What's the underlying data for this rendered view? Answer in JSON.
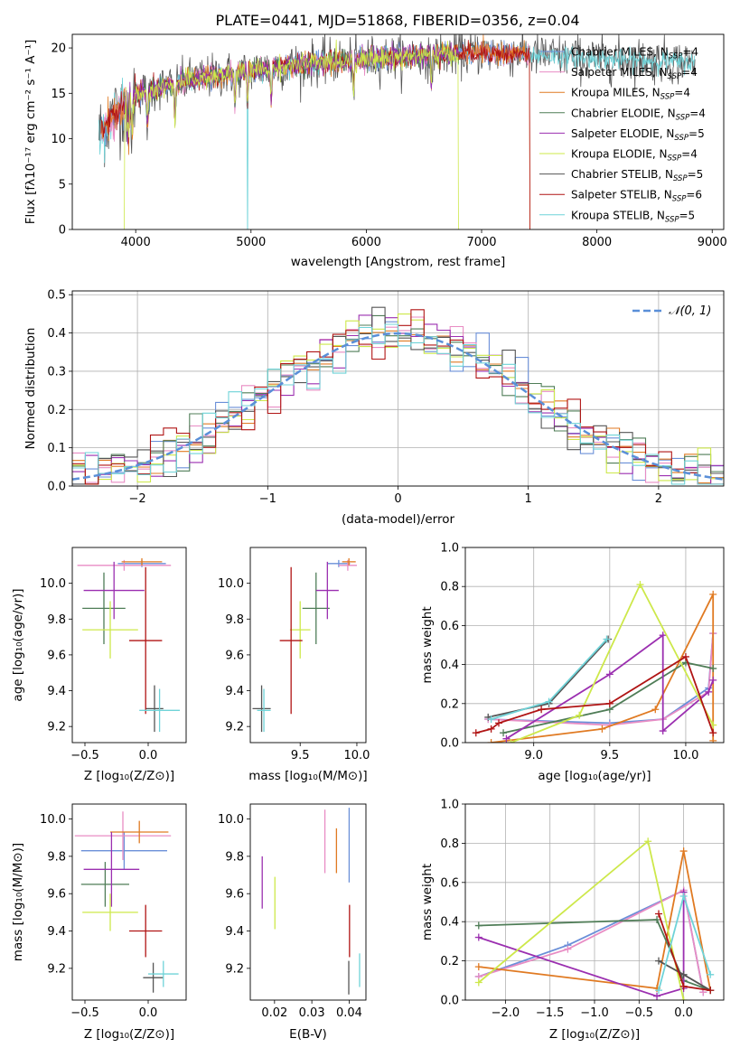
{
  "figure_title": "PLATE=0441, MJD=51868, FIBERID=0356, z=0.04",
  "colors": {
    "chabrier_miles": "#6a8fd8",
    "salpeter_miles": "#e88cc4",
    "kroupa_miles": "#e07a22",
    "chabrier_elodie": "#4f7d57",
    "salpeter_elodie": "#9b2fb0",
    "kroupa_elodie": "#cde84a",
    "chabrier_stelib": "#555555",
    "salpeter_stelib": "#b01414",
    "kroupa_stelib": "#6fd3d8"
  },
  "chart_data": [
    {
      "type": "line",
      "panel": "spectrum",
      "xlabel": "wavelength [Angstrom, rest frame]",
      "ylabel": "Flux [fλ10⁻¹⁷ erg cm⁻² s⁻¹ A⁻¹]",
      "xlim": [
        3450,
        9100
      ],
      "ylim": [
        0,
        21.5
      ],
      "xticks": [
        4000,
        5000,
        6000,
        7000,
        8000,
        9000
      ],
      "yticks": [
        0,
        5,
        10,
        15,
        20
      ],
      "legend_position": "top-right",
      "legend": [
        {
          "key": "chabrier_miles",
          "label": "Chabrier MILES, N",
          "sub": "SSP",
          "tail": "=4"
        },
        {
          "key": "salpeter_miles",
          "label": "Salpeter MILES, N",
          "sub": "SSP",
          "tail": "=4"
        },
        {
          "key": "kroupa_miles",
          "label": "Kroupa MILES, N",
          "sub": "SSP",
          "tail": "=4"
        },
        {
          "key": "chabrier_elodie",
          "label": "Chabrier ELODIE, N",
          "sub": "SSP",
          "tail": "=4"
        },
        {
          "key": "salpeter_elodie",
          "label": "Salpeter ELODIE, N",
          "sub": "SSP",
          "tail": "=5"
        },
        {
          "key": "kroupa_elodie",
          "label": "Kroupa ELODIE, N",
          "sub": "SSP",
          "tail": "=4"
        },
        {
          "key": "chabrier_stelib",
          "label": "Chabrier STELIB, N",
          "sub": "SSP",
          "tail": "=5"
        },
        {
          "key": "salpeter_stelib",
          "label": "Salpeter STELIB, N",
          "sub": "SSP",
          "tail": "=6"
        },
        {
          "key": "kroupa_stelib",
          "label": "Kroupa STELIB, N",
          "sub": "SSP",
          "tail": "=5"
        }
      ],
      "continuum": [
        [
          3680,
          10.5
        ],
        [
          3800,
          12.5
        ],
        [
          4000,
          15.0
        ],
        [
          4500,
          16.5
        ],
        [
          5000,
          17.5
        ],
        [
          5500,
          18.3
        ],
        [
          6000,
          18.8
        ],
        [
          6500,
          19.2
        ],
        [
          7000,
          19.5
        ],
        [
          7500,
          19.2
        ],
        [
          8000,
          18.8
        ],
        [
          8500,
          18.6
        ],
        [
          8850,
          18.4
        ]
      ],
      "series_extents": [
        {
          "key": "chabrier_stelib",
          "x": [
            3680,
            8850
          ]
        },
        {
          "key": "kroupa_stelib",
          "x": [
            3680,
            8850
          ]
        },
        {
          "key": "chabrier_miles",
          "x": [
            3700,
            7420
          ]
        },
        {
          "key": "salpeter_miles",
          "x": [
            3700,
            7420
          ]
        },
        {
          "key": "kroupa_miles",
          "x": [
            3700,
            7420
          ]
        },
        {
          "key": "salpeter_stelib",
          "x": [
            3700,
            7420
          ]
        },
        {
          "key": "chabrier_elodie",
          "x": [
            3900,
            6800
          ]
        },
        {
          "key": "salpeter_elodie",
          "x": [
            3900,
            6800
          ]
        },
        {
          "key": "kroupa_elodie",
          "x": [
            3900,
            6800
          ]
        }
      ],
      "absorption_lines": [
        3934,
        3968,
        4102,
        4340,
        4861,
        4970,
        5175,
        5890,
        6563
      ],
      "drops": [
        {
          "key": "kroupa_elodie",
          "x": 3900
        },
        {
          "key": "kroupa_stelib",
          "x": 4970
        },
        {
          "key": "kroupa_elodie",
          "x": 6800
        },
        {
          "key": "salpeter_stelib",
          "x": 7420
        },
        {
          "key": "kroupa_miles",
          "x": 7420
        }
      ]
    },
    {
      "type": "step",
      "panel": "residuals",
      "xlabel": "(data-model)/error",
      "ylabel": "Normed distribution",
      "xlim": [
        -2.5,
        2.5
      ],
      "ylim": [
        0,
        0.51
      ],
      "xticks": [
        -2,
        -1,
        0,
        1,
        2
      ],
      "yticks": [
        0.0,
        0.1,
        0.2,
        0.3,
        0.4,
        0.5
      ],
      "grid": true,
      "legend_position": "top-right",
      "legend_label": "𝒩(0, 1)",
      "bin_width": 0.1,
      "reference_curve": "normal(0,1)"
    },
    {
      "type": "errorbar",
      "panel": "age_vs_Z",
      "xlabel": "Z [log₁₀(Z/Z⊙)]",
      "ylabel": "age  [log₁₀(age/yr)]",
      "xlim": [
        -0.6,
        0.3
      ],
      "ylim": [
        9.11,
        10.2
      ],
      "xticks": [
        -0.5,
        0.0
      ],
      "yticks": [
        9.2,
        9.4,
        9.6,
        9.8,
        10.0
      ],
      "points": [
        {
          "key": "chabrier_miles",
          "x": -0.05,
          "xerr": 0.19,
          "y": 10.11,
          "yerr": 0.02
        },
        {
          "key": "salpeter_miles",
          "x": -0.19,
          "xerr": 0.37,
          "y": 10.1,
          "yerr": 0.03
        },
        {
          "key": "kroupa_miles",
          "x": -0.05,
          "xerr": 0.16,
          "y": 10.12,
          "yerr": 0.02
        },
        {
          "key": "chabrier_elodie",
          "x": -0.35,
          "xerr": 0.17,
          "y": 9.86,
          "yerr": 0.2
        },
        {
          "key": "salpeter_elodie",
          "x": -0.27,
          "xerr": 0.24,
          "y": 9.96,
          "yerr": 0.16
        },
        {
          "key": "kroupa_elodie",
          "x": -0.3,
          "xerr": 0.22,
          "y": 9.74,
          "yerr": 0.16
        },
        {
          "key": "chabrier_stelib",
          "x": 0.05,
          "xerr": 0.07,
          "y": 9.3,
          "yerr": 0.13
        },
        {
          "key": "salpeter_stelib",
          "x": -0.02,
          "xerr": 0.13,
          "y": 9.68,
          "yerr": 0.41
        },
        {
          "key": "kroupa_stelib",
          "x": 0.09,
          "xerr": 0.16,
          "y": 9.29,
          "yerr": 0.12
        }
      ]
    },
    {
      "type": "errorbar",
      "panel": "age_vs_mass",
      "xlabel": "mass [log₁₀(M/M⊙)]",
      "xlim": [
        9.06,
        10.08
      ],
      "ylim": [
        9.11,
        10.2
      ],
      "xticks": [
        9.5,
        10.0
      ],
      "yticks": [
        9.2,
        9.4,
        9.6,
        9.8,
        10.0
      ],
      "points": [
        {
          "key": "chabrier_miles",
          "x": 9.84,
          "xerr": 0.1,
          "y": 10.11,
          "yerr": 0.02
        },
        {
          "key": "salpeter_miles",
          "x": 9.92,
          "xerr": 0.08,
          "y": 10.1,
          "yerr": 0.03
        },
        {
          "key": "kroupa_miles",
          "x": 9.93,
          "xerr": 0.06,
          "y": 10.12,
          "yerr": 0.02
        },
        {
          "key": "chabrier_elodie",
          "x": 9.64,
          "xerr": 0.12,
          "y": 9.86,
          "yerr": 0.2
        },
        {
          "key": "salpeter_elodie",
          "x": 9.74,
          "xerr": 0.1,
          "y": 9.96,
          "yerr": 0.16
        },
        {
          "key": "kroupa_elodie",
          "x": 9.5,
          "xerr": 0.09,
          "y": 9.74,
          "yerr": 0.16
        },
        {
          "key": "chabrier_stelib",
          "x": 9.16,
          "xerr": 0.08,
          "y": 9.3,
          "yerr": 0.13
        },
        {
          "key": "salpeter_stelib",
          "x": 9.42,
          "xerr": 0.1,
          "y": 9.68,
          "yerr": 0.41
        },
        {
          "key": "kroupa_stelib",
          "x": 9.18,
          "xerr": 0.06,
          "y": 9.29,
          "yerr": 0.12
        }
      ]
    },
    {
      "type": "line",
      "panel": "weight_vs_age",
      "xlabel": "age  [log₁₀(age/yr)]",
      "ylabel": "mass weight",
      "xlim": [
        8.55,
        10.25
      ],
      "ylim": [
        0,
        1.0
      ],
      "xticks": [
        9.0,
        9.5,
        10.0
      ],
      "yticks": [
        0.0,
        0.2,
        0.4,
        0.6,
        0.8,
        1.0
      ],
      "grid": true,
      "series": [
        {
          "key": "chabrier_miles",
          "x": [
            8.7,
            9.5,
            9.85,
            10.15,
            10.18
          ],
          "y": [
            0.12,
            0.1,
            0.12,
            0.28,
            0.56
          ]
        },
        {
          "key": "salpeter_miles",
          "x": [
            8.7,
            9.5,
            9.85,
            10.15,
            10.18
          ],
          "y": [
            0.12,
            0.09,
            0.12,
            0.26,
            0.56
          ]
        },
        {
          "key": "kroupa_miles",
          "x": [
            8.72,
            9.45,
            9.8,
            10.18,
            10.18
          ],
          "y": [
            0.0,
            0.07,
            0.17,
            0.76,
            0.01
          ]
        },
        {
          "key": "chabrier_elodie",
          "x": [
            8.8,
            9.5,
            10.0,
            10.18
          ],
          "y": [
            0.05,
            0.17,
            0.41,
            0.38
          ]
        },
        {
          "key": "salpeter_elodie",
          "x": [
            8.82,
            9.5,
            9.85,
            9.85,
            10.15,
            10.18
          ],
          "y": [
            0.02,
            0.35,
            0.55,
            0.06,
            0.26,
            0.32
          ]
        },
        {
          "key": "kroupa_elodie",
          "x": [
            8.85,
            9.3,
            9.7,
            10.18
          ],
          "y": [
            0.0,
            0.14,
            0.81,
            0.09
          ]
        },
        {
          "key": "chabrier_stelib",
          "x": [
            8.7,
            9.1,
            9.49
          ],
          "y": [
            0.13,
            0.2,
            0.53
          ]
        },
        {
          "key": "salpeter_stelib",
          "x": [
            8.62,
            8.72,
            8.77,
            9.05,
            9.5,
            10.0,
            10.18
          ],
          "y": [
            0.05,
            0.07,
            0.1,
            0.17,
            0.2,
            0.44,
            0.05
          ]
        },
        {
          "key": "kroupa_stelib",
          "x": [
            8.72,
            9.1,
            9.48
          ],
          "y": [
            0.12,
            0.21,
            0.53
          ]
        }
      ]
    },
    {
      "type": "errorbar",
      "panel": "mass_vs_Z",
      "xlabel": "Z [log₁₀(Z/Z⊙)]",
      "ylabel": "mass [log₁₀(M/M⊙)]",
      "xlim": [
        -0.6,
        0.3
      ],
      "ylim": [
        9.03,
        10.08
      ],
      "xticks": [
        -0.5,
        0.0
      ],
      "yticks": [
        9.2,
        9.4,
        9.6,
        9.8,
        10.0
      ],
      "points": [
        {
          "key": "chabrier_miles",
          "x": -0.19,
          "xerr": 0.34,
          "y": 9.83,
          "yerr": 0.1
        },
        {
          "key": "salpeter_miles",
          "x": -0.2,
          "xerr": 0.38,
          "y": 9.91,
          "yerr": 0.13
        },
        {
          "key": "kroupa_miles",
          "x": -0.07,
          "xerr": 0.23,
          "y": 9.93,
          "yerr": 0.06
        },
        {
          "key": "chabrier_elodie",
          "x": -0.34,
          "xerr": 0.19,
          "y": 9.65,
          "yerr": 0.12
        },
        {
          "key": "salpeter_elodie",
          "x": -0.29,
          "xerr": 0.22,
          "y": 9.73,
          "yerr": 0.2
        },
        {
          "key": "kroupa_elodie",
          "x": -0.3,
          "xerr": 0.22,
          "y": 9.5,
          "yerr": 0.1
        },
        {
          "key": "chabrier_stelib",
          "x": 0.04,
          "xerr": 0.08,
          "y": 9.15,
          "yerr": 0.08
        },
        {
          "key": "salpeter_stelib",
          "x": -0.02,
          "xerr": 0.13,
          "y": 9.4,
          "yerr": 0.14
        },
        {
          "key": "kroupa_stelib",
          "x": 0.12,
          "xerr": 0.12,
          "y": 9.17,
          "yerr": 0.07
        }
      ]
    },
    {
      "type": "errorbar",
      "panel": "mass_vs_EBV",
      "xlabel": "E(B-V)",
      "xlim": [
        0.0135,
        0.0445
      ],
      "ylim": [
        9.03,
        10.08
      ],
      "xticks": [
        0.02,
        0.03,
        0.04
      ],
      "yticks": [
        9.2,
        9.4,
        9.6,
        9.8,
        10.0
      ],
      "points": [
        {
          "key": "chabrier_miles",
          "x": 0.04,
          "y": 9.86,
          "yerr": 0.2
        },
        {
          "key": "salpeter_miles",
          "x": 0.0335,
          "y": 9.88,
          "yerr": 0.17
        },
        {
          "key": "kroupa_miles",
          "x": 0.0366,
          "y": 9.83,
          "yerr": 0.12
        },
        {
          "key": "salpeter_elodie",
          "x": 0.0167,
          "y": 9.66,
          "yerr": 0.14
        },
        {
          "key": "kroupa_elodie",
          "x": 0.0201,
          "y": 9.55,
          "yerr": 0.14
        },
        {
          "key": "salpeter_stelib",
          "x": 0.0401,
          "y": 9.4,
          "yerr": 0.14
        },
        {
          "key": "chabrier_stelib",
          "x": 0.0399,
          "y": 9.15,
          "yerr": 0.09
        },
        {
          "key": "kroupa_stelib",
          "x": 0.0428,
          "y": 9.19,
          "yerr": 0.09
        }
      ]
    },
    {
      "type": "line",
      "panel": "weight_vs_Z",
      "xlabel": "Z [log₁₀(Z/Z⊙)]",
      "ylabel": "mass weight",
      "xlim": [
        -2.45,
        0.45
      ],
      "ylim": [
        0,
        1.0
      ],
      "xticks": [
        -2.0,
        -1.5,
        -1.0,
        -0.5,
        0.0
      ],
      "yticks": [
        0.0,
        0.2,
        0.4,
        0.6,
        0.8,
        1.0
      ],
      "grid": true,
      "series": [
        {
          "key": "chabrier_miles",
          "x": [
            -2.3,
            -1.3,
            0.0,
            0.22
          ],
          "y": [
            0.12,
            0.28,
            0.56,
            0.04
          ]
        },
        {
          "key": "salpeter_miles",
          "x": [
            -2.3,
            -1.3,
            0.0,
            0.22
          ],
          "y": [
            0.12,
            0.26,
            0.56,
            0.04
          ]
        },
        {
          "key": "kroupa_miles",
          "x": [
            -2.3,
            -0.3,
            0.0,
            0.3
          ],
          "y": [
            0.17,
            0.06,
            0.76,
            0.05
          ]
        },
        {
          "key": "chabrier_elodie",
          "x": [
            -2.3,
            -0.3,
            0.0,
            0.3
          ],
          "y": [
            0.38,
            0.41,
            0.1,
            0.05
          ]
        },
        {
          "key": "salpeter_elodie",
          "x": [
            -2.3,
            -0.3,
            0.0,
            0.0
          ],
          "y": [
            0.32,
            0.02,
            0.06,
            0.55
          ]
        },
        {
          "key": "kroupa_elodie",
          "x": [
            -2.3,
            -0.4,
            0.0
          ],
          "y": [
            0.09,
            0.81,
            0.0
          ]
        },
        {
          "key": "chabrier_stelib",
          "x": [
            -0.28,
            0.0,
            0.3
          ],
          "y": [
            0.2,
            0.13,
            0.05
          ]
        },
        {
          "key": "salpeter_stelib",
          "x": [
            -0.28,
            0.0,
            0.3
          ],
          "y": [
            0.44,
            0.07,
            0.05
          ]
        },
        {
          "key": "kroupa_stelib",
          "x": [
            -0.28,
            0.0,
            0.3
          ],
          "y": [
            0.05,
            0.53,
            0.13
          ]
        }
      ]
    }
  ]
}
